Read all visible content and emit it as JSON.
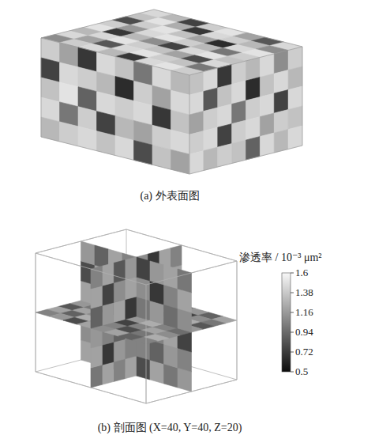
{
  "chart_data": {
    "type": "heatmap3d",
    "panels": [
      {
        "title": "(a) 外表面图",
        "faces": {
          "top": {
            "cells": [
              [
                1.45,
                1.3,
                0.75,
                1.4,
                1.5,
                1.2,
                0.85,
                1.45
              ],
              [
                1.35,
                1.5,
                1.25,
                0.7,
                1.45,
                1.4,
                1.3,
                1.1
              ],
              [
                0.8,
                1.4,
                1.5,
                1.35,
                1.2,
                0.65,
                1.45,
                1.5
              ],
              [
                1.4,
                1.15,
                1.45,
                1.5,
                1.4,
                1.3,
                1.0,
                1.4
              ],
              [
                1.5,
                0.7,
                1.3,
                1.1,
                0.75,
                1.45,
                1.5,
                1.35
              ],
              [
                1.3,
                1.45,
                1.5,
                1.4,
                1.35,
                1.2,
                0.8,
                1.45
              ],
              [
                1.45,
                1.2,
                0.85,
                1.45,
                1.5,
                1.4,
                1.35,
                1.0
              ],
              [
                1.1,
                1.4,
                1.45,
                1.3,
                0.7,
                1.45,
                1.5,
                1.4
              ]
            ]
          },
          "front": {
            "cells": [
              [
                1.4,
                1.2,
                0.7,
                1.45,
                1.35,
                1.0,
                1.45,
                1.3
              ],
              [
                0.75,
                1.45,
                1.4,
                1.3,
                0.65,
                1.4,
                1.2,
                1.45
              ],
              [
                1.35,
                1.5,
                0.9,
                1.45,
                1.4,
                1.45,
                0.7,
                1.35
              ],
              [
                1.45,
                1.0,
                1.4,
                0.75,
                1.3,
                1.2,
                1.4,
                1.45
              ],
              [
                1.3,
                1.4,
                1.45,
                1.35,
                1.45,
                0.8,
                1.35,
                1.2
              ]
            ]
          },
          "side": {
            "cells": [
              [
                1.35,
                1.45,
                0.7,
                1.4,
                1.3,
                1.45,
                1.1,
                1.4
              ],
              [
                1.45,
                0.85,
                1.35,
                1.45,
                0.65,
                1.35,
                1.45,
                1.3
              ],
              [
                1.2,
                1.4,
                1.45,
                1.0,
                1.4,
                1.45,
                0.75,
                1.45
              ],
              [
                1.4,
                1.45,
                0.75,
                1.4,
                1.45,
                1.2,
                1.4,
                1.35
              ],
              [
                1.45,
                1.3,
                1.4,
                1.35,
                0.9,
                1.45,
                1.3,
                1.45
              ]
            ]
          }
        }
      },
      {
        "title": "(b) 剖面图 (X=40, Y=40, Z=20)",
        "faces": {
          "slice_z": {
            "cells": [
              [
                1.1,
                0.95,
                1.2,
                0.7,
                1.05,
                1.15,
                0.9,
                1.2
              ],
              [
                1.0,
                1.25,
                0.85,
                1.1,
                1.2,
                0.75,
                1.1,
                1.0
              ],
              [
                1.2,
                0.8,
                1.15,
                1.25,
                0.95,
                1.1,
                1.25,
                0.85
              ],
              [
                0.9,
                1.15,
                1.05,
                0.8,
                1.2,
                1.0,
                0.7,
                1.15
              ],
              [
                1.15,
                1.0,
                0.65,
                1.1,
                1.15,
                1.25,
                1.05,
                0.95
              ],
              [
                0.85,
                1.2,
                1.1,
                1.0,
                0.75,
                1.05,
                1.2,
                1.1
              ],
              [
                1.2,
                0.9,
                1.25,
                1.15,
                1.05,
                0.8,
                1.0,
                1.25
              ],
              [
                1.05,
                1.15,
                0.8,
                1.2,
                1.1,
                1.2,
                0.9,
                1.05
              ]
            ]
          },
          "slice_y": {
            "cells": [
              [
                1.15,
                0.9,
                1.2,
                1.05,
                0.75,
                1.15,
                1.2,
                1.0
              ],
              [
                0.8,
                1.2,
                1.05,
                1.15,
                1.1,
                0.7,
                1.05,
                1.2
              ],
              [
                1.2,
                1.05,
                0.7,
                1.2,
                1.0,
                1.15,
                0.95,
                1.1
              ],
              [
                1.0,
                1.15,
                1.1,
                0.85,
                1.2,
                1.05,
                1.2,
                0.75
              ],
              [
                1.1,
                0.75,
                1.2,
                1.1,
                1.05,
                0.9,
                1.15,
                1.05
              ],
              [
                1.2,
                1.1,
                0.95,
                1.2,
                0.8,
                1.2,
                1.0,
                1.15
              ]
            ]
          },
          "slice_x": {
            "cells": [
              [
                1.05,
                1.2,
                0.85,
                1.15,
                1.1,
                0.7,
                1.2,
                1.05
              ],
              [
                1.2,
                0.75,
                1.1,
                1.2,
                0.95,
                1.15,
                1.05,
                1.2
              ],
              [
                0.9,
                1.15,
                1.2,
                0.7,
                1.2,
                1.05,
                0.85,
                1.1
              ],
              [
                1.15,
                1.05,
                0.9,
                1.15,
                1.1,
                1.2,
                1.15,
                0.8
              ],
              [
                1.2,
                0.7,
                1.15,
                1.05,
                0.85,
                1.1,
                1.2,
                1.05
              ],
              [
                1.0,
                1.2,
                1.05,
                1.2,
                1.15,
                0.75,
                1.05,
                1.2
              ]
            ]
          }
        }
      }
    ],
    "colorbar": {
      "title": "渗透率 / 10⁻³ μm²",
      "range": [
        0.5,
        1.6
      ],
      "ticks": [
        1.6,
        1.38,
        1.16,
        0.94,
        0.72,
        0.5
      ]
    }
  }
}
